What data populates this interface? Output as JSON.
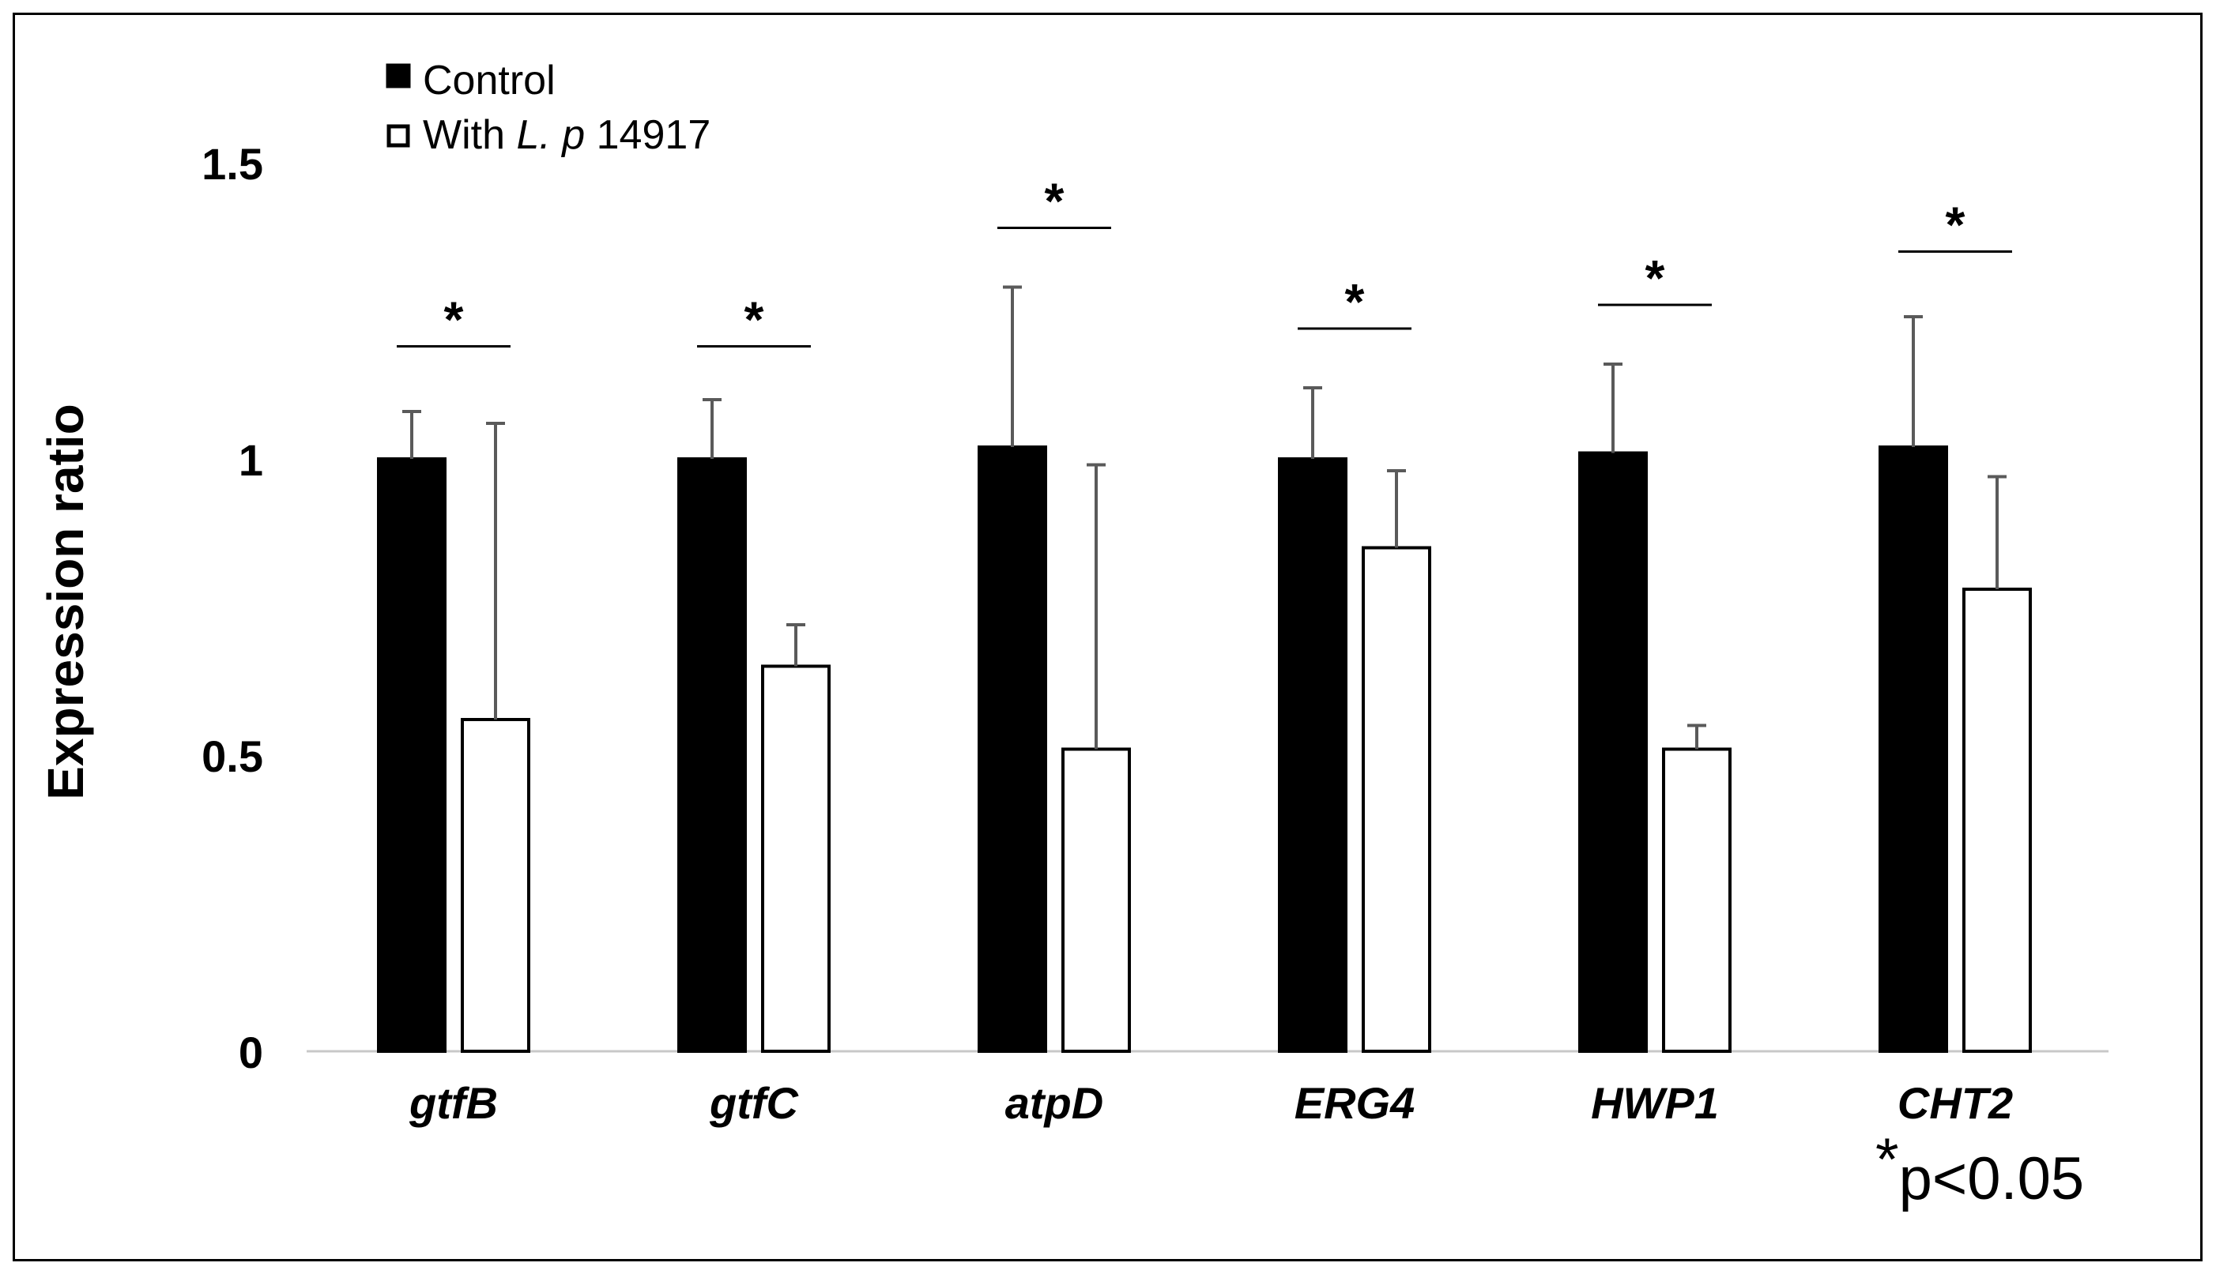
{
  "chart_data": {
    "type": "bar",
    "title": "",
    "xlabel": "",
    "ylabel": "Expression ratio",
    "ylim": [
      0,
      1.5
    ],
    "yticks": [
      "0",
      "0.5",
      "1",
      "1.5"
    ],
    "grid": false,
    "legend_position": "top-left",
    "categories": [
      "gtfB",
      "gtfC",
      "atpD",
      "ERG4",
      "HWP1",
      "CHT2"
    ],
    "series": [
      {
        "name": "Control",
        "color": "#000000",
        "values": [
          1.0,
          1.0,
          1.02,
          1.0,
          1.01,
          1.02
        ],
        "error": [
          0.08,
          0.1,
          0.27,
          0.12,
          0.15,
          0.22
        ]
      },
      {
        "name": "With L. p 14917",
        "color": "#ffffff",
        "values": [
          0.56,
          0.65,
          0.51,
          0.85,
          0.51,
          0.78
        ],
        "error": [
          0.5,
          0.07,
          0.48,
          0.13,
          0.04,
          0.19
        ]
      }
    ],
    "legend": {
      "control_label": "Control",
      "treated_prefix": "With ",
      "treated_italic": "L. p",
      "treated_suffix": " 14917"
    },
    "significance": {
      "marker": "*",
      "bracket_heights": [
        1.19,
        1.19,
        1.39,
        1.22,
        1.26,
        1.35
      ]
    },
    "annotation": {
      "star": "*",
      "text": "p<0.05"
    }
  }
}
